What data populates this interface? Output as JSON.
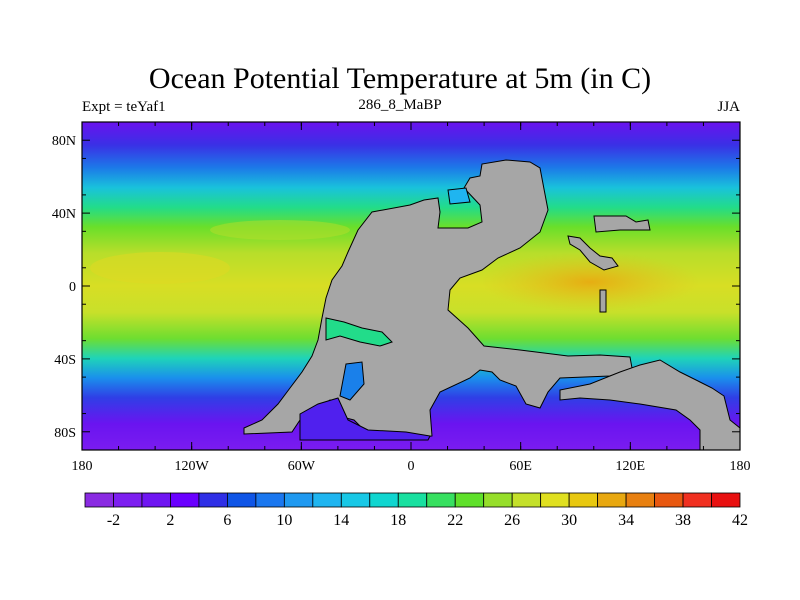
{
  "title": "Ocean Potential Temperature at 5m (in C)",
  "subtitle_left": "Expt = teYaf1",
  "subtitle_center": "286_8_MaBP",
  "subtitle_right": "JJA",
  "x_axis": {
    "labels": [
      "180",
      "120W",
      "60W",
      "0",
      "60E",
      "120E",
      "180"
    ]
  },
  "y_axis": {
    "labels": [
      "80N",
      "40N",
      "0",
      "40S",
      "80S"
    ]
  },
  "colorbar": {
    "colors": [
      "#8a2be2",
      "#7d1ff0",
      "#6f16f2",
      "#6a00ff",
      "#2f2fe6",
      "#0f55e6",
      "#1a77ef",
      "#1f99f0",
      "#1fb5f0",
      "#18c8e6",
      "#10d6d0",
      "#19e0a0",
      "#37e060",
      "#5fe02a",
      "#96de2a",
      "#c4e02a",
      "#e0e020",
      "#e8c810",
      "#e8a810",
      "#e88010",
      "#e85810",
      "#f03020",
      "#e81010"
    ],
    "labels": [
      "-2",
      "2",
      "6",
      "10",
      "14",
      "18",
      "22",
      "26",
      "30",
      "34",
      "38",
      "42"
    ]
  }
}
